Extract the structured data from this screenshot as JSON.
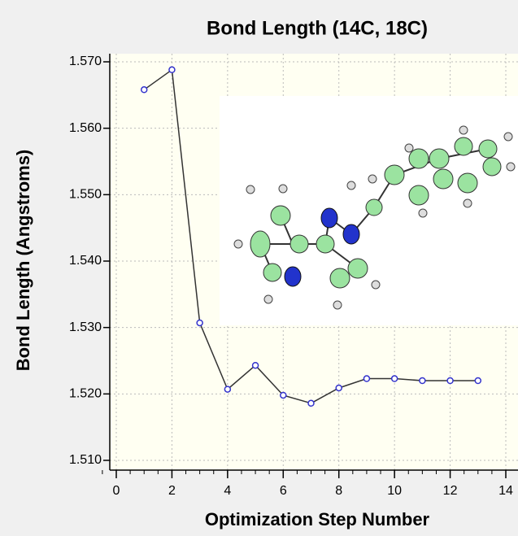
{
  "chart_data": {
    "type": "line",
    "title": "Bond Length (14C, 18C)",
    "x_label": "Optimization Step Number",
    "y_label": "Bond Length (Angstroms)",
    "x": [
      1,
      2,
      3,
      4,
      5,
      6,
      7,
      8,
      9,
      10,
      11,
      12,
      13
    ],
    "values": [
      1.5658,
      1.5688,
      1.5307,
      1.5207,
      1.5243,
      1.5198,
      1.5186,
      1.5209,
      1.5223,
      1.5223,
      1.522,
      1.522,
      1.522
    ],
    "color": "#3333cc",
    "xlim": [
      0,
      14
    ],
    "xticks": [
      0,
      2,
      4,
      6,
      8,
      10,
      12,
      14
    ],
    "ylim": [
      1.51,
      1.57
    ],
    "yticks": [
      {
        "value": 1.51,
        "label": "1.510"
      },
      {
        "value": 1.52,
        "label": "1.520"
      },
      {
        "value": 1.53,
        "label": "1.530"
      },
      {
        "value": 1.54,
        "label": "1.540"
      },
      {
        "value": 1.55,
        "label": "1.550"
      },
      {
        "value": 1.56,
        "label": "1.560"
      },
      {
        "value": 1.57,
        "label": "1.570"
      }
    ],
    "grid": true
  }
}
